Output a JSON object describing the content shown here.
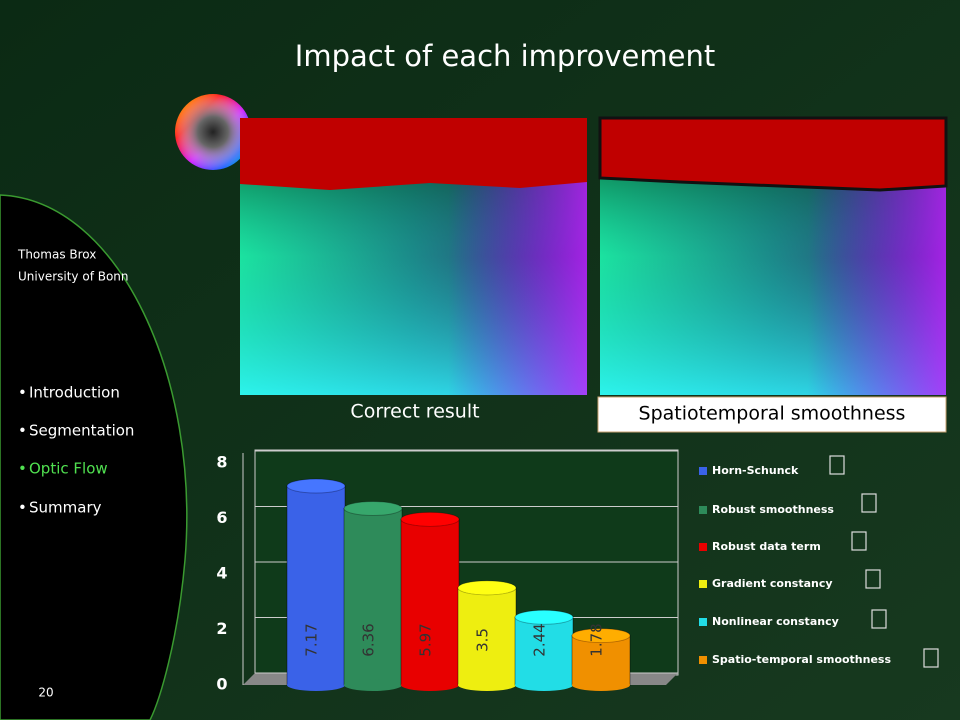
{
  "slide": {
    "title": "Impact of each improvement",
    "author": [
      "Thomas Brox",
      "University of Bonn"
    ],
    "nav": [
      "Introduction",
      "Segmentation",
      "Optic Flow",
      "Summary"
    ],
    "captions": [
      "Correct result",
      "Spatiotemporal smoothness"
    ],
    "page": "20"
  },
  "chart_data": {
    "type": "bar",
    "categories": [
      "Horn-Schunck",
      "Robust smoothness",
      "Robust data term",
      "Gradient constancy",
      "Nonlinear constancy",
      "Spatio-temporal smoothness"
    ],
    "values": [
      7.17,
      6.36,
      5.97,
      3.5,
      2.44,
      1.78
    ],
    "colors": [
      "#3a62e8",
      "#2e8b5a",
      "#e80000",
      "#eeee10",
      "#22dde6",
      "#f09000"
    ],
    "ylim": [
      0,
      8
    ],
    "yticks": [
      0,
      2,
      4,
      6,
      8
    ],
    "grid": true
  }
}
